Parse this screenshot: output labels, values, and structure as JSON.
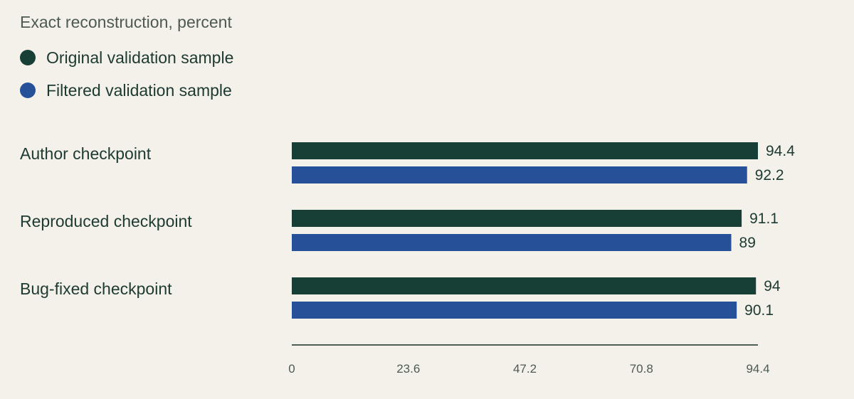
{
  "subtitle": "Exact reconstruction, percent",
  "colors": {
    "original": "#183f35",
    "filtered": "#265199",
    "axis": "#4f5e54",
    "background": "#f4f1ea"
  },
  "chart_data": {
    "type": "bar",
    "orientation": "horizontal",
    "categories": [
      "Author checkpoint",
      "Reproduced checkpoint",
      "Bug-fixed checkpoint"
    ],
    "series": [
      {
        "name": "Original validation sample",
        "values": [
          94.4,
          91.1,
          94
        ],
        "value_labels": [
          "94.4",
          "91.1",
          "94"
        ],
        "color": "#183f35"
      },
      {
        "name": "Filtered validation sample",
        "values": [
          92.2,
          89,
          90.1
        ],
        "value_labels": [
          "92.2",
          "89",
          "90.1"
        ],
        "color": "#265199"
      }
    ],
    "xlim": [
      0,
      94.4
    ],
    "xticks": [
      0,
      23.6,
      47.2,
      70.8,
      94.4
    ],
    "xtick_labels": [
      "0",
      "23.6",
      "47.2",
      "70.8",
      "94.4"
    ],
    "legend_position": "top-left",
    "grid": false
  }
}
